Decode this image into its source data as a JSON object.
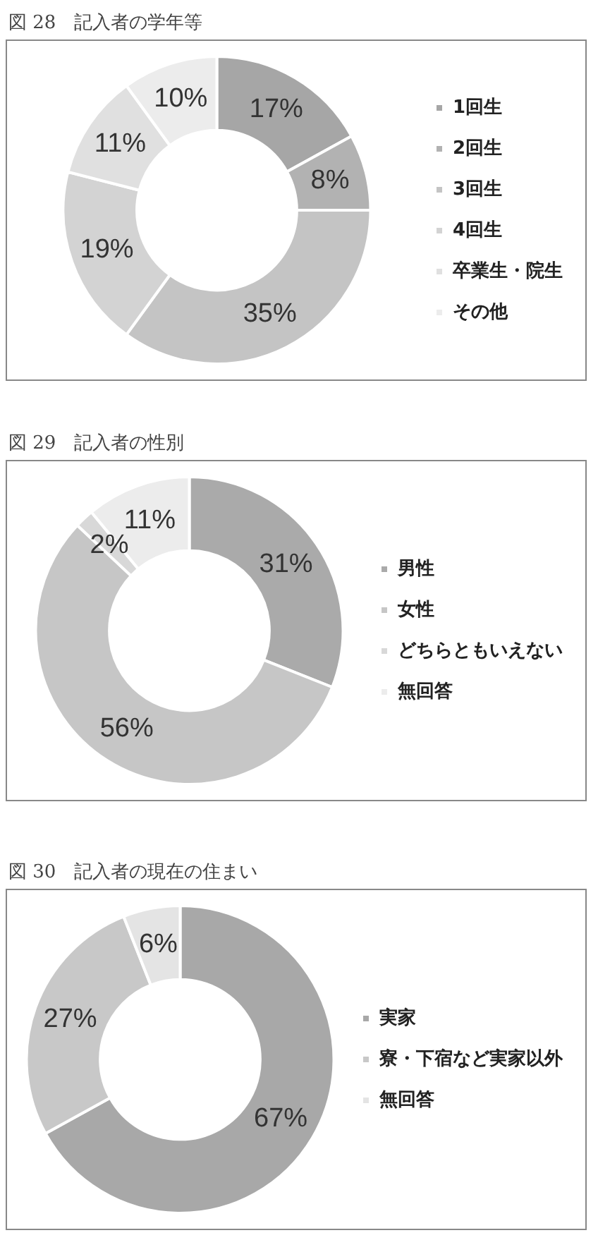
{
  "chart_data": [
    {
      "type": "donut",
      "title": "図 28　記入者の学年等",
      "categories": [
        "1回生",
        "2回生",
        "3回生",
        "4回生",
        "卒業生・院生",
        "その他"
      ],
      "values": [
        17,
        8,
        35,
        19,
        11,
        10
      ],
      "value_labels": [
        "17%",
        "8%",
        "35%",
        "19%",
        "11%",
        "10%"
      ],
      "colors": [
        "#a6a6a6",
        "#b2b2b2",
        "#c4c4c4",
        "#d3d3d3",
        "#e0e0e0",
        "#ececec"
      ],
      "legend": "right"
    },
    {
      "type": "donut",
      "title": "図 29　記入者の性別",
      "categories": [
        "男性",
        "女性",
        "どちらともいえない",
        "無回答"
      ],
      "values": [
        31,
        56,
        2,
        11
      ],
      "value_labels": [
        "31%",
        "56%",
        "2%",
        "11%"
      ],
      "colors": [
        "#aaaaaa",
        "#c6c6c6",
        "#d8d8d8",
        "#ececec"
      ],
      "legend": "right"
    },
    {
      "type": "donut",
      "title": "図 30　記入者の現在の住まい",
      "categories": [
        "実家",
        "寮・下宿など実家以外",
        "無回答"
      ],
      "values": [
        67,
        27,
        6
      ],
      "value_labels": [
        "67%",
        "27%",
        "6%"
      ],
      "colors": [
        "#a8a8a8",
        "#c8c8c8",
        "#e4e4e4"
      ],
      "legend": "right"
    }
  ]
}
